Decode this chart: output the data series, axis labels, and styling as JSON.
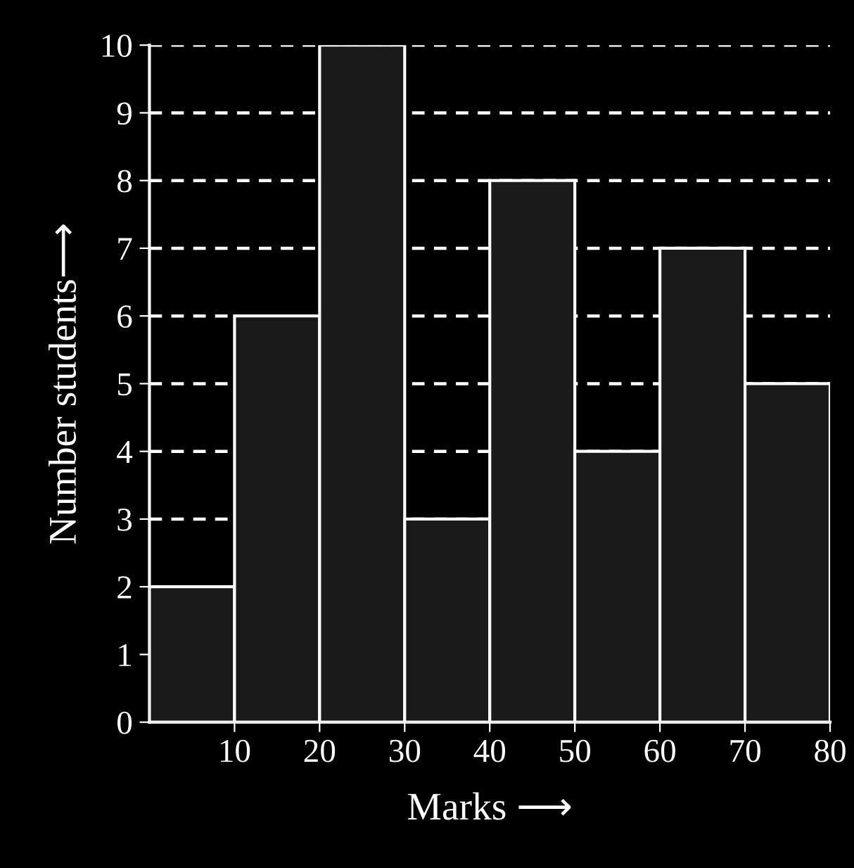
{
  "chart_data": {
    "type": "histogram",
    "xlabel": "Marks ⟶",
    "ylabel": "Number students⟶",
    "bins": [
      0,
      10,
      20,
      30,
      40,
      50,
      60,
      70,
      80
    ],
    "values": [
      2,
      6,
      10,
      3,
      8,
      4,
      7,
      5
    ],
    "color": "#1a1a1a",
    "xlim": [
      0,
      80
    ],
    "xticks": [
      10,
      20,
      30,
      40,
      50,
      60,
      70,
      80
    ],
    "ylim": [
      0,
      10
    ],
    "yticks": [
      0,
      1,
      2,
      3,
      4,
      5,
      6,
      7,
      8,
      9,
      10
    ],
    "grid": "y",
    "legend": false
  }
}
